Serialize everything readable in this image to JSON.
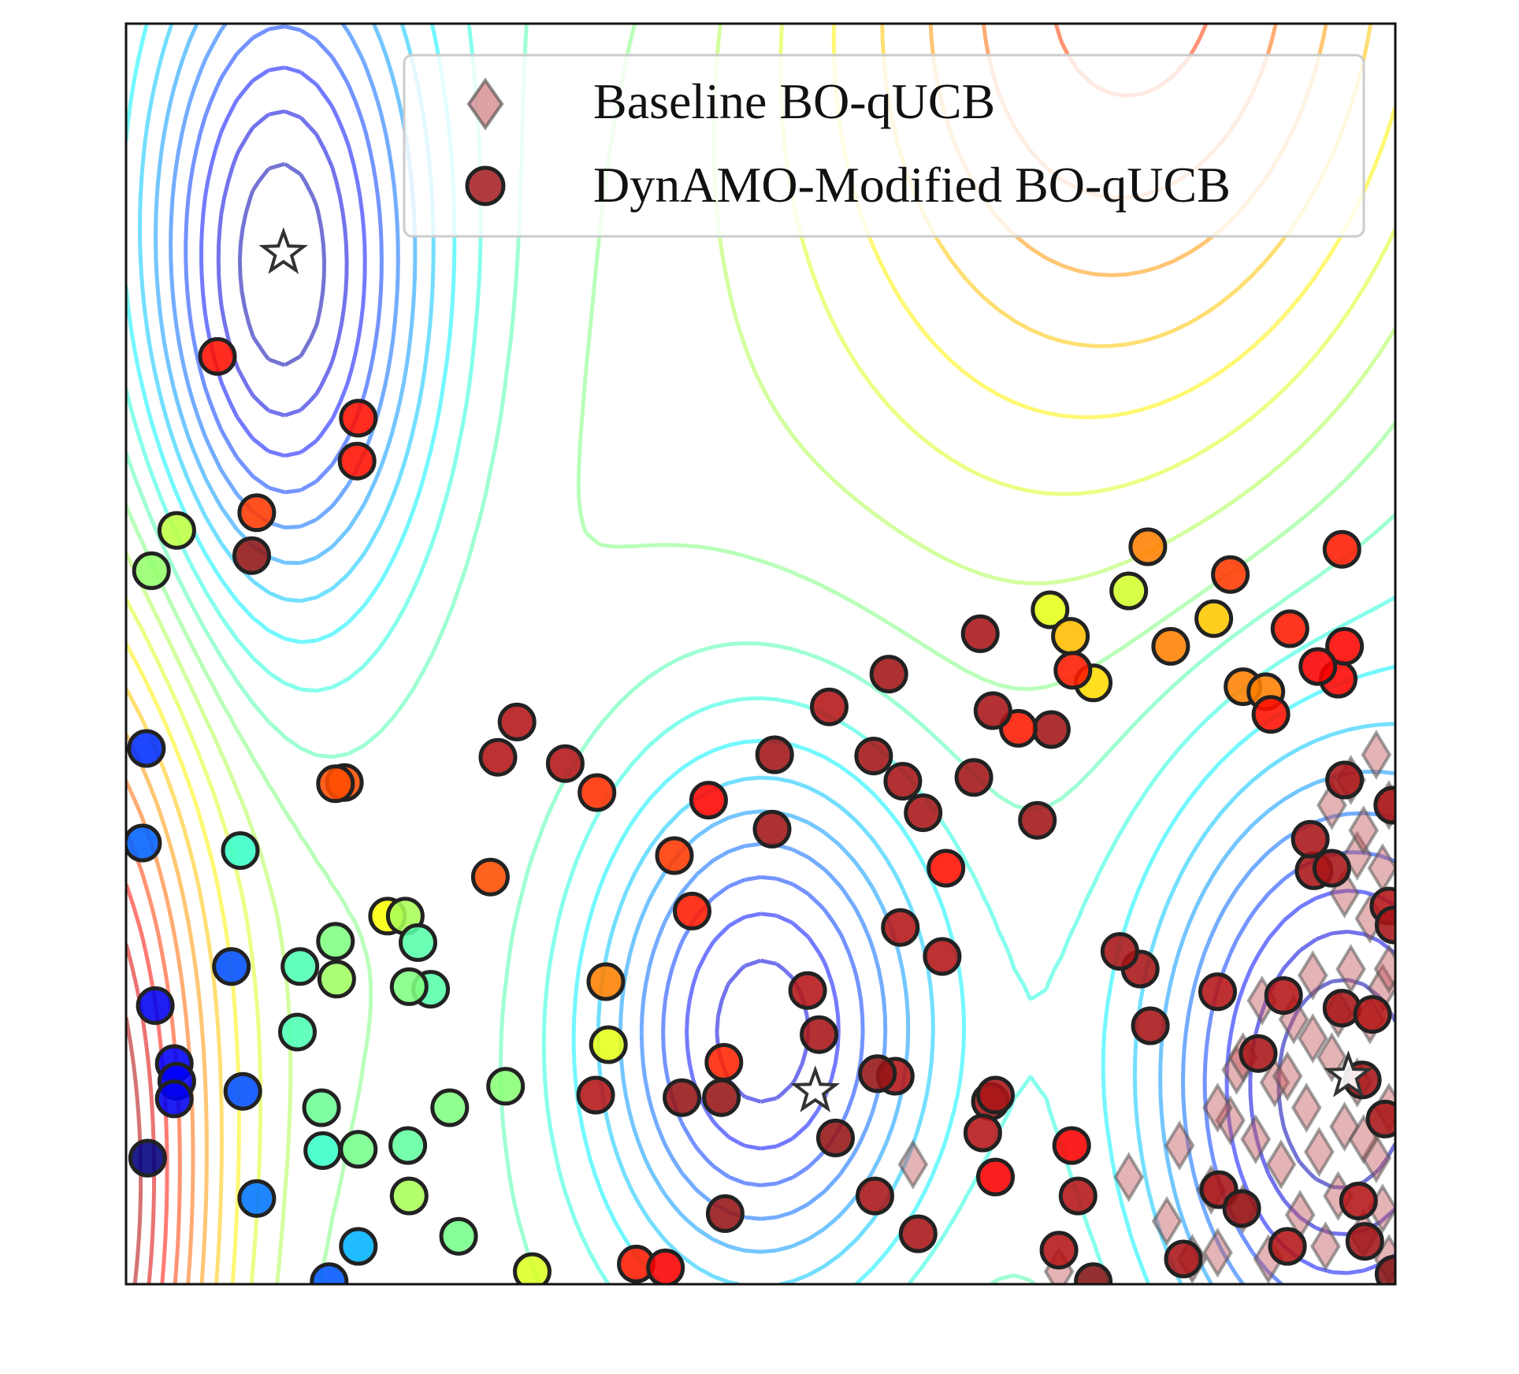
{
  "chart_data": {
    "type": "scatter",
    "title": "",
    "xlabel": "",
    "ylabel": "",
    "xlim": [
      0,
      1
    ],
    "ylim": [
      0,
      1
    ],
    "grid": false,
    "legend": {
      "placement": "top-right",
      "entries": [
        "Baseline BO-qUCB",
        "DynAMO-Modified BO-qUCB"
      ]
    },
    "colormap": "jet",
    "contour_colors": [
      "#1a1aa6",
      "#2b5bff",
      "#29c7ff",
      "#3ff5d9",
      "#8cff73",
      "#e8ff3d",
      "#ffd54d",
      "#ffb03d",
      "#f77a4a",
      "#ee5050",
      "#c94a55"
    ],
    "series": [
      {
        "name": "Baseline BO-qUCB",
        "marker": "diamond",
        "color": "#c4565a",
        "points": [
          [
            0.62,
            0.095
          ],
          [
            0.735,
            0.01
          ],
          [
            0.79,
            0.085
          ],
          [
            0.82,
            0.05
          ],
          [
            0.83,
            0.11
          ],
          [
            0.84,
            0.02
          ],
          [
            0.855,
            0.075
          ],
          [
            0.86,
            0.025
          ],
          [
            0.87,
            0.13
          ],
          [
            0.875,
            0.17
          ],
          [
            0.88,
            0.06
          ],
          [
            0.89,
            0.115
          ],
          [
            0.9,
            0.02
          ],
          [
            0.905,
            0.16
          ],
          [
            0.91,
            0.095
          ],
          [
            0.92,
            0.21
          ],
          [
            0.925,
            0.055
          ],
          [
            0.93,
            0.14
          ],
          [
            0.935,
            0.245
          ],
          [
            0.94,
            0.105
          ],
          [
            0.945,
            0.03
          ],
          [
            0.95,
            0.18
          ],
          [
            0.955,
            0.07
          ],
          [
            0.96,
            0.125
          ],
          [
            0.965,
            0.25
          ],
          [
            0.97,
            0.16
          ],
          [
            0.975,
            0.04
          ],
          [
            0.98,
            0.21
          ],
          [
            0.985,
            0.1
          ],
          [
            0.99,
            0.235
          ],
          [
            0.995,
            0.14
          ],
          [
            0.96,
            0.31
          ],
          [
            0.97,
            0.34
          ],
          [
            0.98,
            0.29
          ],
          [
            0.99,
            0.33
          ],
          [
            0.995,
            0.38
          ],
          [
            0.985,
            0.42
          ],
          [
            0.935,
            0.195
          ],
          [
            0.915,
            0.165
          ],
          [
            0.895,
            0.225
          ],
          [
            0.955,
            0.215
          ],
          [
            0.975,
            0.115
          ],
          [
            0.99,
            0.06
          ],
          [
            0.995,
            0.02
          ],
          [
            0.88,
            0.18
          ],
          [
            0.86,
            0.14
          ],
          [
            0.95,
            0.38
          ],
          [
            0.965,
            0.4
          ],
          [
            0.975,
            0.36
          ],
          [
            0.995,
            0.25
          ]
        ]
      },
      {
        "name": "DynAMO-Modified BO-qUCB",
        "marker": "circle",
        "color_by_value": true,
        "points": [
          [
            0.072,
            0.736,
            0.86
          ],
          [
            0.183,
            0.687,
            0.86
          ],
          [
            0.182,
            0.653,
            0.86
          ],
          [
            0.103,
            0.612,
            0.82
          ],
          [
            0.099,
            0.578,
            0.96
          ],
          [
            0.04,
            0.598,
            0.56
          ],
          [
            0.02,
            0.566,
            0.52
          ],
          [
            0.016,
            0.425,
            0.17
          ],
          [
            0.013,
            0.35,
            0.22
          ],
          [
            0.09,
            0.344,
            0.43
          ],
          [
            0.206,
            0.292,
            0.62
          ],
          [
            0.166,
            0.242,
            0.53
          ],
          [
            0.137,
            0.252,
            0.45
          ],
          [
            0.083,
            0.252,
            0.2
          ],
          [
            0.135,
            0.2,
            0.45
          ],
          [
            0.023,
            0.221,
            0.11
          ],
          [
            0.038,
            0.175,
            0.12
          ],
          [
            0.04,
            0.161,
            0.12
          ],
          [
            0.038,
            0.147,
            0.11
          ],
          [
            0.092,
            0.153,
            0.2
          ],
          [
            0.017,
            0.1,
            0.0
          ],
          [
            0.103,
            0.068,
            0.24
          ],
          [
            0.154,
            0.14,
            0.48
          ],
          [
            0.155,
            0.106,
            0.43
          ],
          [
            0.183,
            0.107,
            0.49
          ],
          [
            0.183,
            0.03,
            0.3
          ],
          [
            0.16,
            0.002,
            0.21
          ],
          [
            0.22,
            0.292,
            0.54
          ],
          [
            0.165,
            0.272,
            0.5
          ],
          [
            0.23,
            0.271,
            0.46
          ],
          [
            0.24,
            0.234,
            0.46
          ],
          [
            0.223,
            0.236,
            0.5
          ],
          [
            0.38,
            0.19,
            0.6
          ],
          [
            0.299,
            0.157,
            0.51
          ],
          [
            0.255,
            0.14,
            0.5
          ],
          [
            0.222,
            0.11,
            0.47
          ],
          [
            0.223,
            0.07,
            0.54
          ],
          [
            0.262,
            0.038,
            0.49
          ],
          [
            0.32,
            0.01,
            0.59
          ],
          [
            0.402,
            0.016,
            0.85
          ],
          [
            0.378,
            0.24,
            0.75
          ],
          [
            0.471,
            0.176,
            0.84
          ],
          [
            0.425,
            0.013,
            0.88
          ],
          [
            0.472,
            0.056,
            0.95
          ],
          [
            0.59,
            0.07,
            0.92
          ],
          [
            0.432,
            0.34,
            0.82
          ],
          [
            0.371,
            0.39,
            0.83
          ],
          [
            0.287,
            0.323,
            0.8
          ],
          [
            0.172,
            0.398,
            0.8
          ],
          [
            0.165,
            0.397,
            0.8
          ],
          [
            0.308,
            0.446,
            0.9
          ],
          [
            0.293,
            0.418,
            0.9
          ],
          [
            0.346,
            0.413,
            0.9
          ],
          [
            0.459,
            0.384,
            0.87
          ],
          [
            0.511,
            0.42,
            0.93
          ],
          [
            0.446,
            0.296,
            0.85
          ],
          [
            0.37,
            0.15,
            0.9
          ],
          [
            0.438,
            0.148,
            0.95
          ],
          [
            0.469,
            0.148,
            0.95
          ],
          [
            0.546,
            0.198,
            0.92
          ],
          [
            0.537,
            0.233,
            0.9
          ],
          [
            0.606,
            0.165,
            0.9
          ],
          [
            0.592,
            0.167,
            0.95
          ],
          [
            0.559,
            0.116,
            0.95
          ],
          [
            0.624,
            0.04,
            0.92
          ],
          [
            0.646,
            0.33,
            0.86
          ],
          [
            0.61,
            0.283,
            0.9
          ],
          [
            0.643,
            0.26,
            0.9
          ],
          [
            0.745,
            0.11,
            0.88
          ],
          [
            0.685,
            0.085,
            0.88
          ],
          [
            0.75,
            0.07,
            0.9
          ],
          [
            0.681,
            0.145,
            0.92
          ],
          [
            0.685,
            0.15,
            0.92
          ],
          [
            0.675,
            0.12,
            0.9
          ],
          [
            0.735,
            0.027,
            0.9
          ],
          [
            0.762,
            0.002,
            0.98
          ],
          [
            0.833,
            0.02,
            0.92
          ],
          [
            0.861,
            0.075,
            0.92
          ],
          [
            0.879,
            0.06,
            0.95
          ],
          [
            0.915,
            0.03,
            0.9
          ],
          [
            0.971,
            0.066,
            0.9
          ],
          [
            0.976,
            0.034,
            0.93
          ],
          [
            0.999,
            0.008,
            0.98
          ],
          [
            0.992,
            0.131,
            0.92
          ],
          [
            0.974,
            0.162,
            0.92
          ],
          [
            0.958,
            0.219,
            0.92
          ],
          [
            0.912,
            0.229,
            0.9
          ],
          [
            0.86,
            0.232,
            0.9
          ],
          [
            0.936,
            0.328,
            0.92
          ],
          [
            0.933,
            0.353,
            0.92
          ],
          [
            0.982,
            0.214,
            0.9
          ],
          [
            0.995,
            0.3,
            0.9
          ],
          [
            0.95,
            0.33,
            0.92
          ],
          [
            0.96,
            0.4,
            0.92
          ],
          [
            0.998,
            0.38,
            0.92
          ],
          [
            0.999,
            0.285,
            0.92
          ],
          [
            0.892,
            0.183,
            0.92
          ],
          [
            0.807,
            0.205,
            0.92
          ],
          [
            0.799,
            0.25,
            0.92
          ],
          [
            0.783,
            0.264,
            0.92
          ],
          [
            0.718,
            0.368,
            0.93
          ],
          [
            0.729,
            0.44,
            0.93
          ],
          [
            0.612,
            0.399,
            0.92
          ],
          [
            0.628,
            0.374,
            0.92
          ],
          [
            0.668,
            0.402,
            0.93
          ],
          [
            0.762,
            0.477,
            0.66
          ],
          [
            0.728,
            0.535,
            0.6
          ],
          [
            0.79,
            0.55,
            0.58
          ],
          [
            0.744,
            0.514,
            0.69
          ],
          [
            0.857,
            0.528,
            0.68
          ],
          [
            0.88,
            0.474,
            0.75
          ],
          [
            0.898,
            0.47,
            0.75
          ],
          [
            0.955,
            0.48,
            0.87
          ],
          [
            0.96,
            0.506,
            0.87
          ],
          [
            0.939,
            0.49,
            0.88
          ],
          [
            0.902,
            0.452,
            0.86
          ],
          [
            0.958,
            0.583,
            0.85
          ],
          [
            0.87,
            0.563,
            0.82
          ],
          [
            0.805,
            0.585,
            0.75
          ],
          [
            0.917,
            0.52,
            0.85
          ],
          [
            0.823,
            0.506,
            0.75
          ],
          [
            0.703,
            0.441,
            0.85
          ],
          [
            0.673,
            0.516,
            0.92
          ],
          [
            0.601,
            0.484,
            0.93
          ],
          [
            0.509,
            0.361,
            0.93
          ],
          [
            0.554,
            0.458,
            0.9
          ],
          [
            0.589,
            0.419,
            0.93
          ],
          [
            0.683,
            0.455,
            0.92
          ],
          [
            0.746,
            0.487,
            0.85
          ]
        ]
      }
    ],
    "optima_markers": [
      [
        0.124,
        0.818
      ],
      [
        0.543,
        0.153
      ],
      [
        0.963,
        0.165
      ]
    ]
  }
}
